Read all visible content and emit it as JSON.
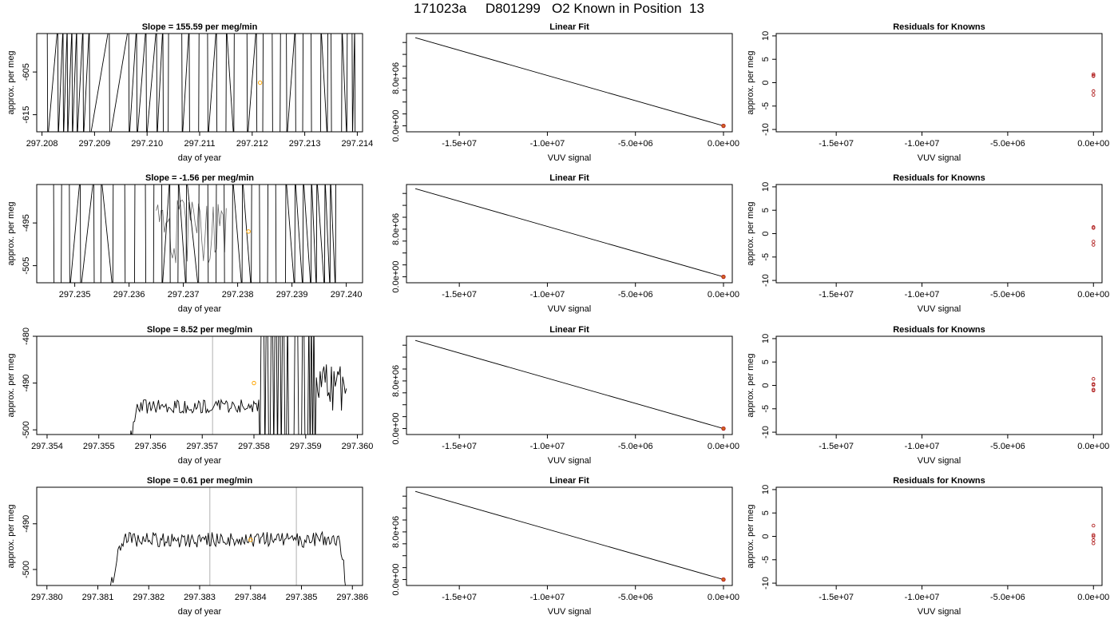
{
  "figure": {
    "run_id": "171023a",
    "sample_id": "D801299",
    "description": "O2 Known in Position",
    "position": "13"
  },
  "colors": {
    "trace": "#000000",
    "marker_orange": "#ffa500",
    "residual_red": "#b22222",
    "fit_point": "#d2691e",
    "vline": "#bebebe"
  },
  "chart_data": [
    {
      "type": "line",
      "row": 1,
      "panel": "timeseries",
      "title_prefix": "Slope = ",
      "slope": "155.59",
      "title_suffix": " per meg/min",
      "xlabel": "day of year",
      "ylabel": "approx. per meg",
      "xlim": [
        297.2079,
        297.2141
      ],
      "ylim": [
        -619,
        -596
      ],
      "xticks": [
        "297.208",
        "297.209",
        "297.210",
        "297.211",
        "297.212",
        "297.213",
        "297.214"
      ],
      "yticks": [
        "-605",
        "-615"
      ],
      "trace_mode": "spikes",
      "spikes_x": [
        297.2081,
        297.2083,
        297.2084,
        297.20848,
        297.20857,
        297.20866,
        297.20878,
        297.2089,
        297.20928,
        297.20965,
        297.2098,
        297.20998,
        297.21018,
        297.2103,
        297.2104,
        297.21066,
        297.2108,
        297.21098,
        297.21115,
        297.21132,
        297.2115,
        297.21165,
        297.2119,
        297.21208,
        297.2122,
        297.21238,
        297.21253,
        297.21265,
        297.21282,
        297.21296,
        297.21312,
        297.2133,
        297.21343,
        297.2135,
        297.2137,
        297.2138,
        297.2139,
        297.21395
      ],
      "highlight": {
        "x": 297.21215,
        "y": -607.5
      }
    },
    {
      "type": "line",
      "row": 1,
      "panel": "fit",
      "title": "Linear Fit",
      "xlabel": "VUV signal",
      "ylabel": "",
      "xlim": [
        -18000000,
        500000
      ],
      "ylim": [
        -1000000,
        15500000
      ],
      "xticks": [
        "-1.5e+07",
        "-1.0e+07",
        "-5.0e+06",
        "0.0e+00"
      ],
      "yticks": [
        "0.0e+00",
        "8.0e+06"
      ],
      "line": [
        [
          -17500000,
          14800000
        ],
        [
          0,
          0
        ]
      ],
      "points": [
        [
          0,
          0
        ]
      ]
    },
    {
      "type": "scatter",
      "row": 1,
      "panel": "residuals",
      "title": "Residuals for Knowns",
      "xlabel": "VUV signal",
      "ylabel": "approx. per meg",
      "xlim": [
        -18500000,
        500000
      ],
      "ylim": [
        -10.5,
        10.5
      ],
      "xticks": [
        "-1.5e+07",
        "-1.0e+07",
        "-5.0e+06",
        "0.0e+00"
      ],
      "yticks": [
        "-10",
        "-5",
        "0",
        "5",
        "10"
      ],
      "residuals": [
        1.8,
        1.5,
        1.4,
        -1.8,
        -2.6
      ]
    },
    {
      "type": "line",
      "row": 2,
      "panel": "timeseries",
      "title_prefix": "Slope = ",
      "slope": "-1.56",
      "title_suffix": " per meg/min",
      "xlabel": "day of year",
      "ylabel": "approx. per meg",
      "xlim": [
        297.2343,
        297.2403
      ],
      "ylim": [
        -509,
        -486
      ],
      "xticks": [
        "297.235",
        "297.236",
        "297.237",
        "297.238",
        "297.239",
        "297.240"
      ],
      "yticks": [
        "-495",
        "-505"
      ],
      "trace_mode": "spikes",
      "spikes_x": [
        297.23461,
        297.23475,
        297.2349,
        297.2351,
        297.23535,
        297.23548,
        297.2357,
        297.23592,
        297.2361,
        297.2363,
        297.23645,
        297.2366,
        297.23675,
        297.2369,
        297.23705,
        297.23728,
        297.23745,
        297.2376,
        297.23775,
        297.2379,
        297.23808,
        297.23825,
        297.2384,
        297.23855,
        297.2387,
        297.23888,
        297.23905,
        297.2392,
        297.23935,
        297.23945,
        297.2396,
        297.2397,
        297.2398
      ],
      "wiggle_x": [
        297.2365,
        297.2378
      ],
      "highlight": {
        "x": 297.2382,
        "y": -497
      }
    },
    {
      "type": "line",
      "row": 2,
      "panel": "fit",
      "title": "Linear Fit",
      "xlabel": "VUV signal",
      "ylabel": "",
      "xlim": [
        -18000000,
        500000
      ],
      "ylim": [
        -1000000,
        15500000
      ],
      "xticks": [
        "-1.5e+07",
        "-1.0e+07",
        "-5.0e+06",
        "0.0e+00"
      ],
      "yticks": [
        "0.0e+00",
        "8.0e+06"
      ],
      "line": [
        [
          -17500000,
          14800000
        ],
        [
          0,
          0
        ]
      ],
      "points": [
        [
          0,
          0
        ]
      ]
    },
    {
      "type": "scatter",
      "row": 2,
      "panel": "residuals",
      "title": "Residuals for Knowns",
      "xlabel": "VUV signal",
      "ylabel": "approx. per meg",
      "xlim": [
        -18500000,
        500000
      ],
      "ylim": [
        -10.5,
        10.5
      ],
      "xticks": [
        "-1.5e+07",
        "-1.0e+07",
        "-5.0e+06",
        "0.0e+00"
      ],
      "yticks": [
        "-10",
        "-5",
        "0",
        "5",
        "10"
      ],
      "residuals": [
        1.4,
        1.2,
        -1.7,
        -2.4
      ]
    },
    {
      "type": "line",
      "row": 3,
      "panel": "timeseries",
      "title_prefix": "Slope = ",
      "slope": "8.52",
      "title_suffix": " per meg/min",
      "xlabel": "day of year",
      "ylabel": "approx. per meg",
      "xlim": [
        297.3538,
        297.3601
      ],
      "ylim": [
        -501,
        -480
      ],
      "xticks": [
        "297.354",
        "297.355",
        "297.356",
        "297.357",
        "297.358",
        "297.359",
        "297.360"
      ],
      "yticks": [
        "-480",
        "-490",
        "-500"
      ],
      "trace_mode": "noisy",
      "trace_start": 297.3555,
      "trace_end": 297.3598,
      "base_level": -495,
      "noise_amp": 1.6,
      "burst_start": 297.3581,
      "burst_end": 297.3592,
      "vlines": [
        297.3572
      ],
      "highlight": {
        "x": 297.358,
        "y": -490
      }
    },
    {
      "type": "line",
      "row": 3,
      "panel": "fit",
      "title": "Linear Fit",
      "xlabel": "VUV signal",
      "ylabel": "",
      "xlim": [
        -18000000,
        500000
      ],
      "ylim": [
        -1000000,
        15500000
      ],
      "xticks": [
        "-1.5e+07",
        "-1.0e+07",
        "-5.0e+06",
        "0.0e+00"
      ],
      "yticks": [
        "0.0e+00",
        "8.0e+06"
      ],
      "line": [
        [
          -17500000,
          14800000
        ],
        [
          0,
          0
        ]
      ],
      "points": [
        [
          0,
          0
        ]
      ]
    },
    {
      "type": "scatter",
      "row": 3,
      "panel": "residuals",
      "title": "Residuals for Knowns",
      "xlabel": "VUV signal",
      "ylabel": "approx. per meg",
      "xlim": [
        -18500000,
        500000
      ],
      "ylim": [
        -10.5,
        10.5
      ],
      "xticks": [
        "-1.5e+07",
        "-1.0e+07",
        "-5.0e+06",
        "0.0e+00"
      ],
      "yticks": [
        "-10",
        "-5",
        "0",
        "5",
        "10"
      ],
      "residuals": [
        1.4,
        0.3,
        0.1,
        -0.9,
        -1.1
      ]
    },
    {
      "type": "line",
      "row": 4,
      "panel": "timeseries",
      "title_prefix": "Slope = ",
      "slope": "0.61",
      "title_suffix": " per meg/min",
      "xlabel": "day of year",
      "ylabel": "approx. per meg",
      "xlim": [
        297.3798,
        297.3862
      ],
      "ylim": [
        -503.5,
        -482
      ],
      "xticks": [
        "297.380",
        "297.381",
        "297.382",
        "297.383",
        "297.384",
        "297.385",
        "297.386"
      ],
      "yticks": [
        "-490",
        "-500"
      ],
      "trace_mode": "smooth",
      "trace_start": 297.3812,
      "trace_end": 297.3859,
      "base_level": -493.5,
      "noise_amp": 1.7,
      "vlines": [
        297.3832,
        297.3849
      ],
      "highlight": {
        "x": 297.384,
        "y": -493.5
      }
    },
    {
      "type": "line",
      "row": 4,
      "panel": "fit",
      "title": "Linear Fit",
      "xlabel": "VUV signal",
      "ylabel": "",
      "xlim": [
        -18000000,
        500000
      ],
      "ylim": [
        -1000000,
        15500000
      ],
      "xticks": [
        "-1.5e+07",
        "-1.0e+07",
        "-5.0e+06",
        "0.0e+00"
      ],
      "yticks": [
        "0.0e+00",
        "8.0e+06"
      ],
      "line": [
        [
          -17500000,
          14800000
        ],
        [
          0,
          0
        ]
      ],
      "points": [
        [
          0,
          0
        ]
      ]
    },
    {
      "type": "scatter",
      "row": 4,
      "panel": "residuals",
      "title": "Residuals for Knowns",
      "xlabel": "VUV signal",
      "ylabel": "approx. per meg",
      "xlim": [
        -18500000,
        500000
      ],
      "ylim": [
        -10.5,
        10.5
      ],
      "xticks": [
        "-1.5e+07",
        "-1.0e+07",
        "-5.0e+06",
        "0.0e+00"
      ],
      "yticks": [
        "-10",
        "-5",
        "0",
        "5",
        "10"
      ],
      "residuals": [
        2.3,
        0.3,
        0.0,
        -0.8,
        -1.5
      ]
    }
  ]
}
